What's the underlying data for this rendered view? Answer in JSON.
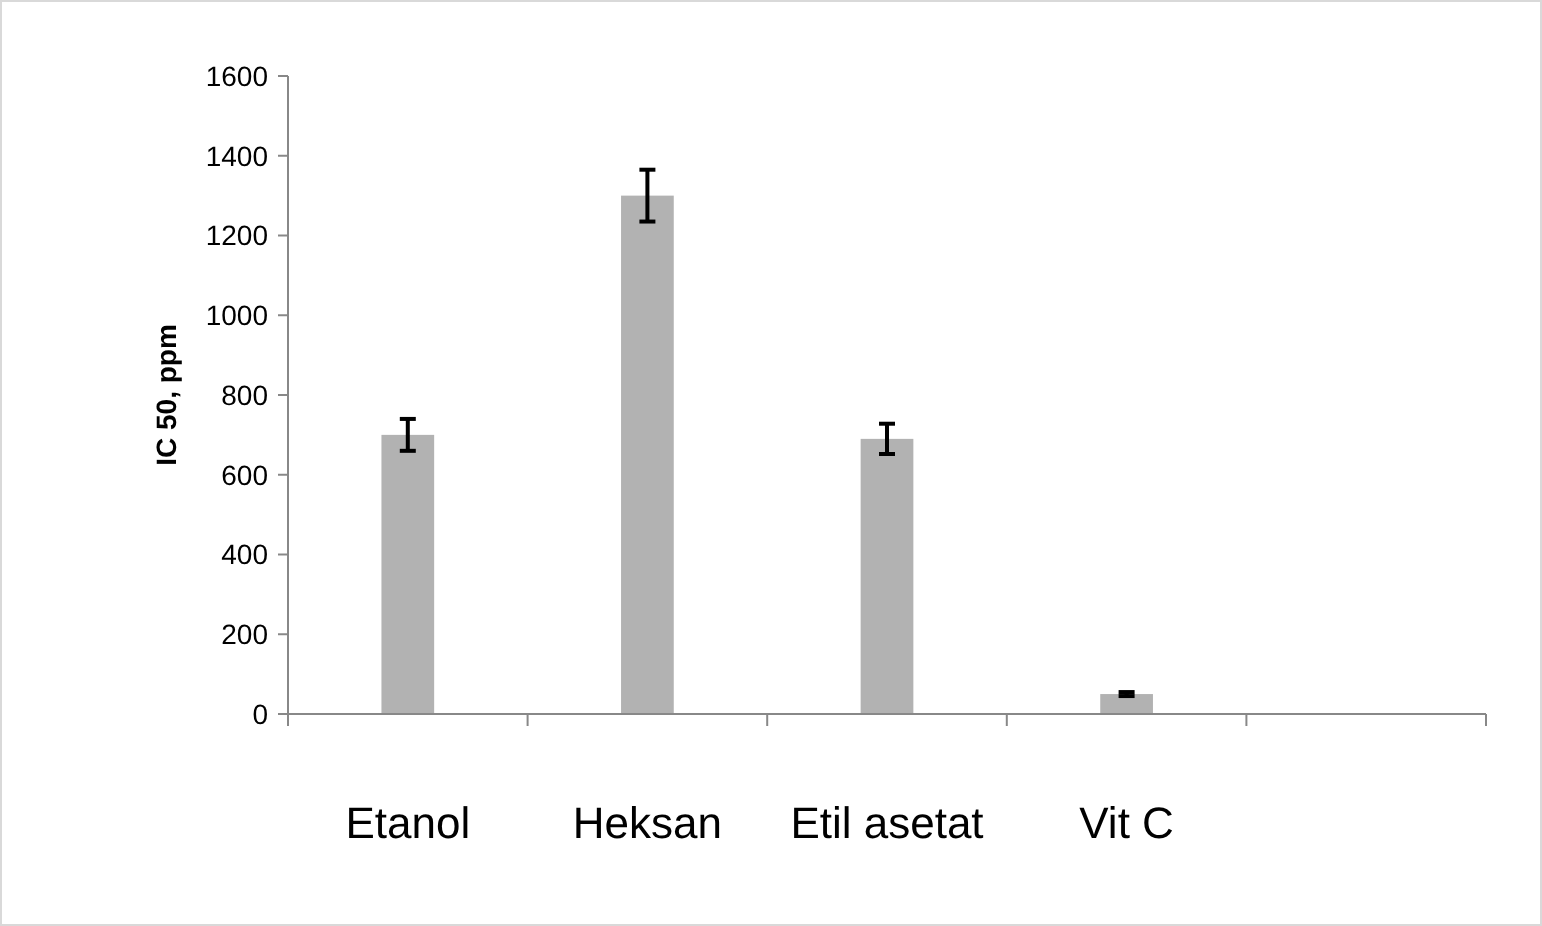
{
  "chart_data": {
    "type": "bar",
    "ylabel": "IC 50, ppm",
    "categories": [
      "Etanol",
      "Heksan",
      "Etil asetat",
      "Vit C",
      null
    ],
    "values": [
      700,
      1300,
      690,
      50,
      null
    ],
    "errors": [
      40,
      65,
      38,
      5,
      null
    ],
    "color": "#b2b2b2",
    "ylim": [
      0,
      1600
    ],
    "yticks": [
      0,
      200,
      400,
      600,
      800,
      1000,
      1200,
      1400,
      1600
    ],
    "grid": false
  }
}
